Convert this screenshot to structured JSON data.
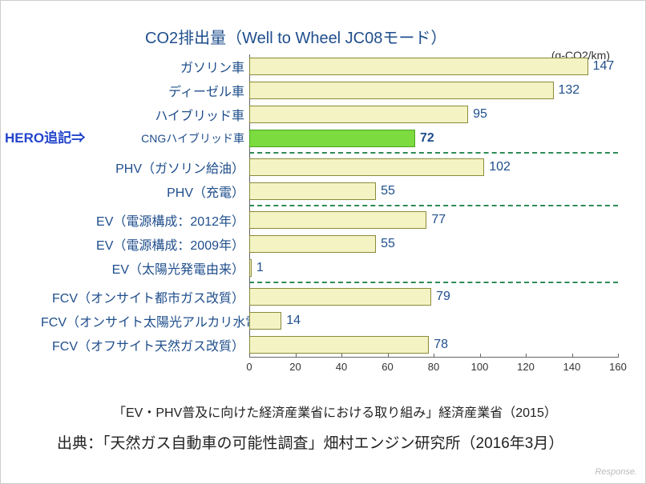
{
  "title": "CO2排出量（Well to Wheel JC08モード）",
  "unit": "(g-CO2/km)",
  "hero_note": "HERO追記⇒",
  "xmax": 160,
  "xtick_step": 20,
  "bar_color_default": "#f3f3c4",
  "bar_color_highlight": "#7bdb3f",
  "divider_color": "#2e8b57",
  "text_color": "#1f4e8c",
  "groups": [
    {
      "items": [
        {
          "label": "ガソリン車",
          "value": 147,
          "highlight": false
        },
        {
          "label": "ディーゼル車",
          "value": 132,
          "highlight": false
        },
        {
          "label": "ハイブリッド車",
          "value": 95,
          "highlight": false
        },
        {
          "label": "CNGハイブリッド車",
          "value": 72,
          "highlight": true,
          "hero": true
        }
      ]
    },
    {
      "items": [
        {
          "label": "PHV（ガソリン給油）",
          "value": 102,
          "highlight": false
        },
        {
          "label": "PHV（充電）",
          "value": 55,
          "highlight": false
        }
      ]
    },
    {
      "items": [
        {
          "label": "EV（電源構成：2012年）",
          "value": 77,
          "highlight": false
        },
        {
          "label": "EV（電源構成：2009年）",
          "value": 55,
          "highlight": false
        },
        {
          "label": "EV（太陽光発電由来）",
          "value": 1,
          "highlight": false
        }
      ]
    },
    {
      "items": [
        {
          "label": "FCV（オンサイト都市ガス改質）",
          "value": 79,
          "highlight": false
        },
        {
          "label": "FCV（オンサイト太陽光アルカリ水電解）",
          "value": 14,
          "highlight": false
        },
        {
          "label": "FCV（オフサイト天然ガス改質）",
          "value": 78,
          "highlight": false
        }
      ]
    }
  ],
  "citation1": "「EV・PHV普及に向けた経済産業省における取り組み」経済産業省（2015）",
  "citation2": "出典：「天然ガス自動車の可能性調査」畑村エンジン研究所（2016年3月）",
  "watermark": "Response."
}
